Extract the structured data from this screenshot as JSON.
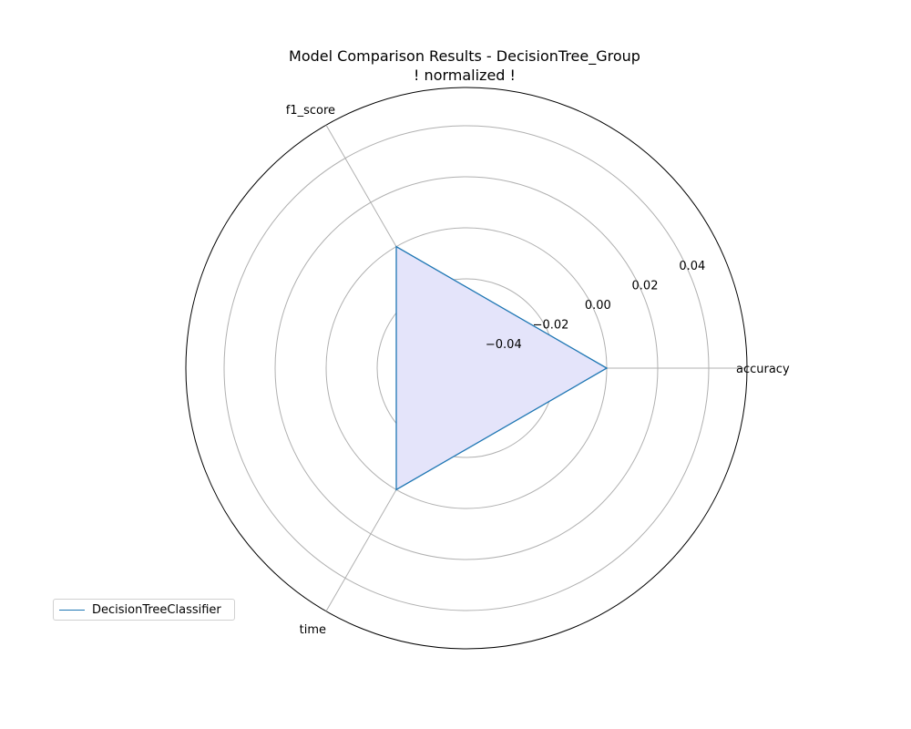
{
  "chart_data": {
    "type": "radar",
    "title": "Model Comparison Results - DecisionTree_Group",
    "subtitle": "! normalized !",
    "axes": [
      "accuracy",
      "f1_score",
      "time"
    ],
    "radial_ticks": [
      "−0.04",
      "−0.02",
      "0.00",
      "0.02",
      "0.04"
    ],
    "radial_tick_values": [
      -0.04,
      -0.02,
      0.0,
      0.02,
      0.04
    ],
    "rlim": [
      -0.055,
      0.055
    ],
    "grid": true,
    "legend_position": "lower-left",
    "series": [
      {
        "name": "DecisionTreeClassifier",
        "values": [
          0.0,
          0.0,
          0.0
        ],
        "color": "#1f77b4",
        "fill": "#e4e4fa"
      }
    ]
  }
}
